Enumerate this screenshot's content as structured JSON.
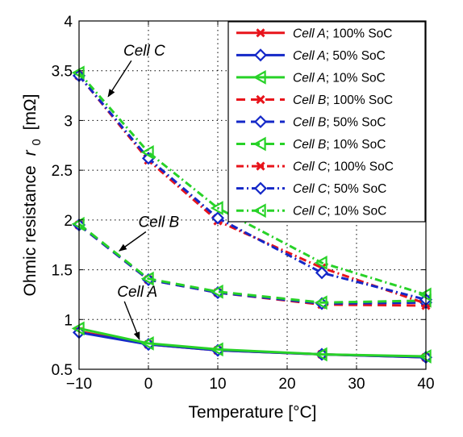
{
  "chart_data": {
    "type": "line",
    "title": "",
    "xlabel": "Temperature [°C]",
    "ylabel_main": "Ohmic resistance",
    "ylabel_symbol": "r",
    "ylabel_subscript": "0",
    "ylabel_unit": "[mΩ]",
    "xlim": [
      -10,
      40
    ],
    "ylim": [
      0.5,
      4
    ],
    "xticks": [
      -10,
      0,
      10,
      20,
      30,
      40
    ],
    "xtick_labels": [
      "−10",
      "0",
      "10",
      "20",
      "30",
      "40"
    ],
    "yticks": [
      0.5,
      1,
      1.5,
      2,
      2.5,
      3,
      3.5,
      4
    ],
    "ytick_labels": [
      "0.5",
      "1",
      "1.5",
      "2",
      "2.5",
      "3",
      "3.5",
      "4"
    ],
    "grid": true,
    "legend_position": "top-right",
    "x": [
      -10,
      0,
      10,
      25,
      40
    ],
    "series": [
      {
        "cell": "Cell A",
        "soc": "; 100% SoC",
        "color": "#e8141b",
        "dash": "solid",
        "marker": "x",
        "values": [
          0.88,
          0.75,
          0.69,
          0.65,
          0.62
        ]
      },
      {
        "cell": "Cell A",
        "soc": "; 50% SoC",
        "color": "#1428c8",
        "dash": "solid",
        "marker": "diamond",
        "values": [
          0.87,
          0.75,
          0.69,
          0.65,
          0.62
        ]
      },
      {
        "cell": "Cell A",
        "soc": "; 10% SoC",
        "color": "#28d228",
        "dash": "solid",
        "marker": "triangle",
        "values": [
          0.91,
          0.76,
          0.7,
          0.65,
          0.63
        ]
      },
      {
        "cell": "Cell B",
        "soc": "; 100% SoC",
        "color": "#e8141b",
        "dash": "dashed",
        "marker": "x",
        "values": [
          1.95,
          1.4,
          1.27,
          1.15,
          1.14
        ]
      },
      {
        "cell": "Cell B",
        "soc": "; 50% SoC",
        "color": "#1428c8",
        "dash": "dashed",
        "marker": "diamond",
        "values": [
          1.95,
          1.4,
          1.27,
          1.16,
          1.17
        ]
      },
      {
        "cell": "Cell B",
        "soc": "; 10% SoC",
        "color": "#28d228",
        "dash": "dashed",
        "marker": "triangle",
        "values": [
          1.96,
          1.41,
          1.28,
          1.17,
          1.19
        ]
      },
      {
        "cell": "Cell C",
        "soc": "; 100% SoC",
        "color": "#e8141b",
        "dash": "dashdot",
        "marker": "x",
        "values": [
          3.45,
          2.6,
          1.99,
          1.52,
          1.16
        ]
      },
      {
        "cell": "Cell C",
        "soc": "; 50% SoC",
        "color": "#1428c8",
        "dash": "dashdot",
        "marker": "diamond",
        "values": [
          3.45,
          2.62,
          2.02,
          1.47,
          1.2
        ]
      },
      {
        "cell": "Cell C",
        "soc": "; 10% SoC",
        "color": "#28d228",
        "dash": "dashdot",
        "marker": "triangle",
        "values": [
          3.48,
          2.68,
          2.12,
          1.57,
          1.25
        ]
      }
    ],
    "annotations": [
      {
        "text": "Cell C",
        "x": -0.6,
        "y": 3.65,
        "arrow_to": [
          -5.8,
          3.24
        ]
      },
      {
        "text": "Cell B",
        "x": 1.5,
        "y": 1.93,
        "arrow_to": [
          -4.2,
          1.69
        ]
      },
      {
        "text": "Cell A",
        "x": -1.6,
        "y": 1.23,
        "arrow_to": [
          -1.3,
          0.8
        ]
      }
    ]
  }
}
